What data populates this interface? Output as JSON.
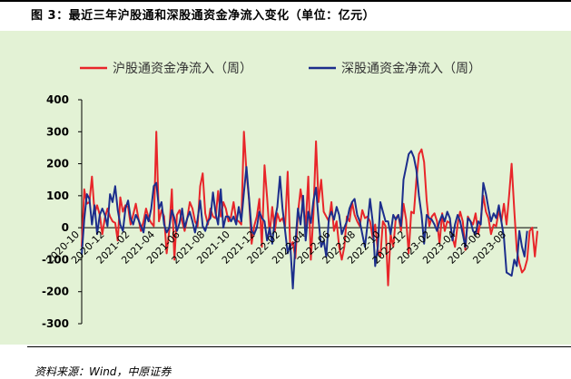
{
  "title": "图 3：最近三年沪股通和深股通资金净流入变化（单位：亿元）",
  "source": "资料来源：Wind，中原证券",
  "chart_data": {
    "type": "line",
    "title": "图 3：最近三年沪股通和深股通资金净流入变化（单位：亿元）",
    "xlabel": "",
    "ylabel": "",
    "ylim": [
      -300,
      400
    ],
    "yticks": [
      400,
      300,
      200,
      100,
      0,
      -100,
      -200,
      -300
    ],
    "grid": false,
    "legend_position": "top",
    "x_tick_labels": [
      "2020-10",
      "2020-12",
      "2021-02",
      "2021-04",
      "2021-06",
      "2021-08",
      "2021-10",
      "2021-12",
      "2022-02",
      "2022-04",
      "2022-06",
      "2022-08",
      "2022-10",
      "2022-12",
      "2023-02",
      "2023-04",
      "2023-06",
      "2023-08"
    ],
    "series": [
      {
        "name": "沪股通资金净流入（周）",
        "color": "#E8262A",
        "values": [
          -60,
          120,
          75,
          80,
          160,
          45,
          70,
          40,
          -20,
          30,
          60,
          35,
          20,
          15,
          -40,
          95,
          50,
          70,
          65,
          10,
          40,
          75,
          30,
          -10,
          20,
          60,
          30,
          15,
          5,
          300,
          20,
          55,
          35,
          -80,
          -10,
          120,
          -100,
          40,
          55,
          20,
          -10,
          30,
          80,
          60,
          20,
          5,
          130,
          170,
          45,
          10,
          60,
          35,
          30,
          115,
          35,
          80,
          60,
          20,
          35,
          80,
          25,
          20,
          10,
          300,
          175,
          85,
          -50,
          5,
          35,
          90,
          -60,
          195,
          95,
          -20,
          65,
          -10,
          45,
          20,
          30,
          5,
          175,
          -60,
          -45,
          -95,
          45,
          120,
          65,
          5,
          160,
          -100,
          45,
          270,
          80,
          150,
          50,
          35,
          20,
          80,
          -10,
          20,
          -60,
          -100,
          -60,
          35,
          20,
          80,
          40,
          20,
          5,
          55,
          30,
          35,
          20,
          -30,
          10,
          -70,
          -90,
          20,
          5,
          -180,
          -20,
          -60,
          30,
          40,
          -10,
          75,
          25,
          -80,
          50,
          45,
          150,
          230,
          245,
          205,
          85,
          5,
          35,
          45,
          20,
          -50,
          45,
          -10,
          20,
          15,
          -30,
          -60,
          10,
          50,
          20,
          -70,
          35,
          20,
          10,
          45,
          -20,
          25,
          100,
          50,
          30,
          -20,
          10,
          5,
          55,
          20,
          75,
          10,
          100,
          200,
          55,
          -70,
          -110,
          -140,
          -130,
          -100,
          -10,
          0,
          -90,
          -10
        ]
      },
      {
        "name": "深股通资金净流入（周）",
        "color": "#1C2E8C",
        "values": [
          -85,
          25,
          105,
          90,
          10,
          70,
          -20,
          40,
          60,
          40,
          5,
          105,
          80,
          130,
          55,
          10,
          -10,
          60,
          85,
          30,
          10,
          40,
          25,
          5,
          -15,
          40,
          20,
          60,
          130,
          140,
          60,
          80,
          10,
          -15,
          0,
          55,
          30,
          -10,
          15,
          60,
          0,
          30,
          50,
          20,
          -15,
          25,
          85,
          5,
          -10,
          20,
          30,
          110,
          45,
          10,
          120,
          0,
          35,
          35,
          20,
          35,
          10,
          65,
          20,
          110,
          190,
          90,
          -10,
          -20,
          0,
          50,
          30,
          20,
          -40,
          0,
          -50,
          25,
          65,
          160,
          60,
          -10,
          -80,
          -50,
          -190,
          -50,
          60,
          10,
          100,
          -40,
          50,
          15,
          85,
          125,
          25,
          -60,
          -40,
          -90,
          30,
          50,
          25,
          65,
          40,
          -20,
          0,
          20,
          60,
          80,
          90,
          40,
          20,
          -20,
          -60,
          10,
          90,
          20,
          -120,
          -60,
          80,
          50,
          20,
          20,
          -20,
          40,
          25,
          40,
          5,
          150,
          190,
          230,
          240,
          220,
          180,
          100,
          40,
          -50,
          40,
          30,
          25,
          10,
          -10,
          20,
          40,
          20,
          50,
          30,
          -40,
          10,
          40,
          20,
          -20,
          -60,
          30,
          20,
          -10,
          -20,
          20,
          10,
          140,
          105,
          60,
          20,
          45,
          30,
          70,
          20,
          -30,
          -140,
          -145,
          -150,
          -100,
          -120,
          -10,
          -60,
          -90,
          -10
        ]
      }
    ]
  }
}
